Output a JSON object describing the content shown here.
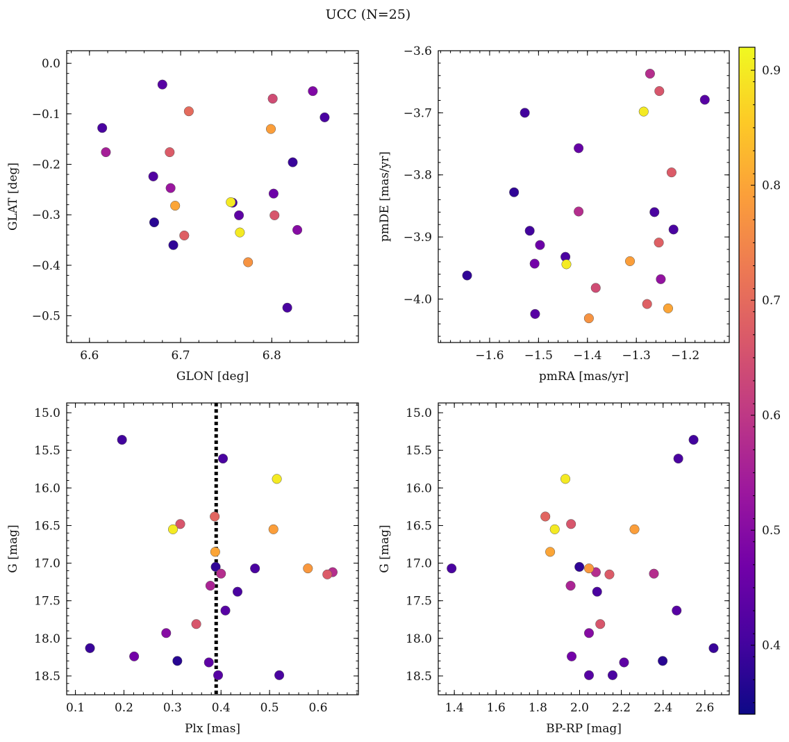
{
  "figure": {
    "title": "UCC (N=25)"
  },
  "colorbar": {
    "range": [
      0.34,
      0.92
    ],
    "ticks": [
      0.4,
      0.5,
      0.6,
      0.7,
      0.8,
      0.9
    ],
    "tick_labels": [
      "0.4",
      "0.5",
      "0.6",
      "0.7",
      "0.8",
      "0.9"
    ],
    "colormap": "plasma",
    "stops": [
      "#0d0887",
      "#46039f",
      "#7201a8",
      "#9c179e",
      "#bd3786",
      "#d8576b",
      "#ed7953",
      "#fb9f3a",
      "#fdca26",
      "#f0f921"
    ]
  },
  "chart_data": [
    {
      "type": "scatter",
      "id": "glon_glat",
      "xlabel": "GLON [deg]",
      "ylabel": "GLAT [deg]",
      "xlim": [
        6.575,
        6.895
      ],
      "ylim": [
        -0.553,
        0.025
      ],
      "y_inverted": false,
      "xticks": [
        6.6,
        6.7,
        6.8
      ],
      "xtick_labels": [
        "6.6",
        "6.7",
        "6.8"
      ],
      "yticks": [
        0.0,
        -0.1,
        -0.2,
        -0.3,
        -0.4,
        -0.5
      ],
      "ytick_labels": [
        "0.0",
        "−0.1",
        "−0.2",
        "−0.3",
        "−0.4",
        "−0.5"
      ],
      "x": [
        6.68,
        6.845,
        6.614,
        6.709,
        6.801,
        6.858,
        6.618,
        6.688,
        6.799,
        6.823,
        6.67,
        6.689,
        6.802,
        6.694,
        6.757,
        6.755,
        6.764,
        6.671,
        6.803,
        6.704,
        6.765,
        6.828,
        6.692,
        6.774,
        6.817
      ],
      "y": [
        -0.042,
        -0.055,
        -0.128,
        -0.095,
        -0.07,
        -0.107,
        -0.176,
        -0.176,
        -0.13,
        -0.196,
        -0.224,
        -0.247,
        -0.258,
        -0.282,
        -0.276,
        -0.275,
        -0.301,
        -0.315,
        -0.301,
        -0.341,
        -0.335,
        -0.33,
        -0.36,
        -0.394,
        -0.484
      ],
      "color": [
        0.43,
        0.49,
        0.41,
        0.7,
        0.64,
        0.41,
        0.55,
        0.67,
        0.79,
        0.39,
        0.42,
        0.53,
        0.46,
        0.8,
        0.4,
        0.9,
        0.44,
        0.37,
        0.66,
        0.68,
        0.9,
        0.5,
        0.38,
        0.77,
        0.41
      ]
    },
    {
      "type": "scatter",
      "id": "pmra_pmde",
      "xlabel": "pmRA [mas/yr]",
      "ylabel": "pmDE [mas/yr]",
      "xlim": [
        -1.705,
        -1.11
      ],
      "ylim": [
        -4.07,
        -3.6
      ],
      "y_inverted": false,
      "xticks": [
        -1.6,
        -1.5,
        -1.4,
        -1.3,
        -1.2
      ],
      "xtick_labels": [
        "−1.6",
        "−1.5",
        "−1.4",
        "−1.3",
        "−1.2"
      ],
      "yticks": [
        -3.6,
        -3.7,
        -3.8,
        -3.9,
        -4.0
      ],
      "ytick_labels": [
        "−3.6",
        "−3.7",
        "−3.8",
        "−3.9",
        "−4.0"
      ],
      "x": [
        -1.272,
        -1.253,
        -1.16,
        -1.528,
        -1.285,
        -1.418,
        -1.228,
        -1.55,
        -1.263,
        -1.418,
        -1.518,
        -1.224,
        -1.497,
        -1.254,
        -1.508,
        -1.445,
        -1.443,
        -1.313,
        -1.25,
        -1.383,
        -1.278,
        -1.235,
        -1.507,
        -1.397,
        -1.646
      ],
      "y": [
        -3.637,
        -3.665,
        -3.679,
        -3.7,
        -3.698,
        -3.757,
        -3.796,
        -3.828,
        -3.86,
        -3.859,
        -3.89,
        -3.888,
        -3.913,
        -3.909,
        -3.943,
        -3.932,
        -3.944,
        -3.939,
        -3.968,
        -3.982,
        -4.008,
        -4.015,
        -4.024,
        -4.031,
        -3.962
      ],
      "color": [
        0.58,
        0.66,
        0.43,
        0.4,
        0.9,
        0.45,
        0.67,
        0.38,
        0.41,
        0.58,
        0.4,
        0.41,
        0.46,
        0.68,
        0.47,
        0.41,
        0.9,
        0.79,
        0.52,
        0.64,
        0.68,
        0.8,
        0.43,
        0.77,
        0.38
      ]
    },
    {
      "type": "scatter",
      "id": "plx_g",
      "xlabel": "Plx [mas]",
      "ylabel": "G [mag]",
      "xlim": [
        0.082,
        0.683
      ],
      "ylim": [
        14.87,
        18.75
      ],
      "y_inverted": true,
      "vline_x": 0.39,
      "xticks": [
        0.1,
        0.2,
        0.3,
        0.4,
        0.5,
        0.6
      ],
      "xtick_labels": [
        "0.1",
        "0.2",
        "0.3",
        "0.4",
        "0.5",
        "0.6"
      ],
      "yticks": [
        15.0,
        15.5,
        16.0,
        16.5,
        17.0,
        17.5,
        18.0,
        18.5
      ],
      "ytick_labels": [
        "15.0",
        "15.5",
        "16.0",
        "16.5",
        "17.0",
        "17.5",
        "18.0",
        "18.5"
      ],
      "x": [
        0.196,
        0.404,
        0.515,
        0.387,
        0.316,
        0.301,
        0.508,
        0.388,
        0.389,
        0.47,
        0.579,
        0.619,
        0.63,
        0.4,
        0.378,
        0.434,
        0.409,
        0.349,
        0.287,
        0.13,
        0.221,
        0.31,
        0.375,
        0.394,
        0.52
      ],
      "y": [
        15.36,
        15.61,
        15.88,
        16.38,
        16.48,
        16.55,
        16.55,
        16.85,
        17.05,
        17.07,
        17.07,
        17.15,
        17.12,
        17.14,
        17.3,
        17.38,
        17.63,
        17.81,
        17.93,
        18.13,
        18.24,
        18.3,
        18.32,
        18.49,
        18.49
      ],
      "color": [
        0.4,
        0.41,
        0.9,
        0.69,
        0.66,
        0.9,
        0.79,
        0.8,
        0.38,
        0.41,
        0.78,
        0.67,
        0.58,
        0.58,
        0.56,
        0.41,
        0.43,
        0.66,
        0.5,
        0.39,
        0.47,
        0.37,
        0.44,
        0.43,
        0.41
      ]
    },
    {
      "type": "scatter",
      "id": "bprp_g",
      "xlabel": "BP-RP [mag]",
      "ylabel": "G [mag]",
      "xlim": [
        1.323,
        2.717
      ],
      "ylim": [
        14.87,
        18.75
      ],
      "y_inverted": true,
      "xticks": [
        1.4,
        1.6,
        1.8,
        2.0,
        2.2,
        2.4,
        2.6
      ],
      "xtick_labels": [
        "1.4",
        "1.6",
        "1.8",
        "2.0",
        "2.2",
        "2.4",
        "2.6"
      ],
      "yticks": [
        15.0,
        15.5,
        16.0,
        16.5,
        17.0,
        17.5,
        18.0,
        18.5
      ],
      "ytick_labels": [
        "15.0",
        "15.5",
        "16.0",
        "16.5",
        "17.0",
        "17.5",
        "18.0",
        "18.5"
      ],
      "x": [
        2.546,
        2.473,
        1.932,
        1.836,
        1.959,
        1.881,
        2.263,
        1.859,
        1.999,
        2.045,
        1.387,
        2.143,
        2.078,
        2.356,
        1.957,
        2.084,
        2.465,
        2.099,
        2.045,
        2.642,
        1.962,
        2.398,
        2.213,
        2.045,
        2.158
      ],
      "y": [
        15.36,
        15.61,
        15.88,
        16.38,
        16.48,
        16.55,
        16.55,
        16.85,
        17.05,
        17.07,
        17.07,
        17.15,
        17.12,
        17.14,
        17.3,
        17.38,
        17.63,
        17.81,
        17.93,
        18.13,
        18.24,
        18.3,
        18.32,
        18.49,
        18.49
      ],
      "color": [
        0.4,
        0.41,
        0.9,
        0.69,
        0.66,
        0.9,
        0.79,
        0.8,
        0.38,
        0.78,
        0.41,
        0.67,
        0.58,
        0.58,
        0.56,
        0.41,
        0.43,
        0.66,
        0.5,
        0.39,
        0.47,
        0.37,
        0.44,
        0.43,
        0.41
      ]
    }
  ]
}
